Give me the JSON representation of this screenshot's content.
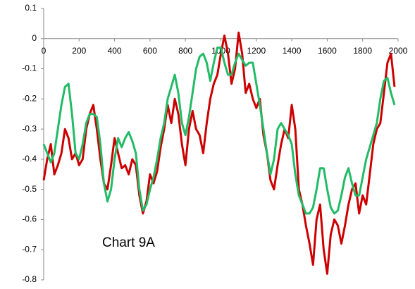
{
  "chart_data": {
    "type": "line",
    "annotation": "Chart 9A",
    "x": [
      0,
      20,
      40,
      60,
      80,
      100,
      120,
      140,
      160,
      180,
      200,
      220,
      240,
      260,
      280,
      300,
      320,
      340,
      360,
      380,
      400,
      420,
      440,
      460,
      480,
      500,
      520,
      540,
      560,
      580,
      600,
      620,
      640,
      660,
      680,
      700,
      720,
      740,
      760,
      780,
      800,
      820,
      840,
      860,
      880,
      900,
      920,
      940,
      960,
      980,
      1000,
      1020,
      1040,
      1060,
      1080,
      1100,
      1120,
      1140,
      1160,
      1180,
      1200,
      1220,
      1240,
      1260,
      1280,
      1300,
      1320,
      1340,
      1360,
      1380,
      1400,
      1420,
      1440,
      1460,
      1480,
      1500,
      1520,
      1540,
      1560,
      1580,
      1600,
      1620,
      1640,
      1660,
      1680,
      1700,
      1720,
      1740,
      1760,
      1780,
      1800,
      1820,
      1840,
      1860,
      1880,
      1900,
      1920,
      1940,
      1960,
      1980
    ],
    "series": [
      {
        "color": "#cc0000",
        "values": [
          -0.47,
          -0.4,
          -0.35,
          -0.45,
          -0.42,
          -0.38,
          -0.3,
          -0.33,
          -0.4,
          -0.38,
          -0.42,
          -0.4,
          -0.3,
          -0.25,
          -0.22,
          -0.3,
          -0.4,
          -0.48,
          -0.5,
          -0.42,
          -0.33,
          -0.38,
          -0.43,
          -0.42,
          -0.45,
          -0.4,
          -0.42,
          -0.52,
          -0.58,
          -0.54,
          -0.45,
          -0.48,
          -0.44,
          -0.36,
          -0.3,
          -0.22,
          -0.28,
          -0.2,
          -0.25,
          -0.35,
          -0.42,
          -0.3,
          -0.24,
          -0.3,
          -0.32,
          -0.38,
          -0.28,
          -0.2,
          -0.15,
          -0.12,
          -0.05,
          0.01,
          -0.05,
          -0.15,
          -0.1,
          0.02,
          -0.05,
          -0.18,
          -0.15,
          -0.2,
          -0.23,
          -0.2,
          -0.32,
          -0.38,
          -0.47,
          -0.5,
          -0.42,
          -0.35,
          -0.3,
          -0.33,
          -0.22,
          -0.3,
          -0.5,
          -0.55,
          -0.62,
          -0.68,
          -0.75,
          -0.6,
          -0.55,
          -0.7,
          -0.78,
          -0.65,
          -0.6,
          -0.62,
          -0.68,
          -0.62,
          -0.55,
          -0.5,
          -0.48,
          -0.58,
          -0.52,
          -0.55,
          -0.45,
          -0.35,
          -0.3,
          -0.28,
          -0.18,
          -0.08,
          -0.05,
          -0.16
        ]
      },
      {
        "color": "#22bb66",
        "values": [
          -0.35,
          -0.38,
          -0.41,
          -0.38,
          -0.3,
          -0.22,
          -0.16,
          -0.15,
          -0.25,
          -0.38,
          -0.4,
          -0.35,
          -0.28,
          -0.25,
          -0.25,
          -0.26,
          -0.35,
          -0.48,
          -0.54,
          -0.5,
          -0.4,
          -0.33,
          -0.36,
          -0.33,
          -0.31,
          -0.34,
          -0.38,
          -0.5,
          -0.57,
          -0.55,
          -0.5,
          -0.46,
          -0.4,
          -0.33,
          -0.28,
          -0.2,
          -0.16,
          -0.12,
          -0.18,
          -0.28,
          -0.32,
          -0.26,
          -0.18,
          -0.1,
          -0.06,
          -0.05,
          -0.08,
          -0.14,
          -0.08,
          -0.03,
          -0.03,
          -0.08,
          -0.12,
          -0.12,
          -0.08,
          -0.05,
          -0.07,
          -0.09,
          -0.08,
          -0.08,
          -0.15,
          -0.22,
          -0.3,
          -0.38,
          -0.45,
          -0.4,
          -0.3,
          -0.28,
          -0.3,
          -0.32,
          -0.35,
          -0.45,
          -0.52,
          -0.55,
          -0.58,
          -0.58,
          -0.56,
          -0.5,
          -0.43,
          -0.43,
          -0.5,
          -0.56,
          -0.58,
          -0.57,
          -0.52,
          -0.46,
          -0.43,
          -0.48,
          -0.52,
          -0.52,
          -0.46,
          -0.4,
          -0.36,
          -0.32,
          -0.28,
          -0.2,
          -0.14,
          -0.13,
          -0.18,
          -0.22
        ]
      }
    ],
    "xlim": [
      0,
      2000
    ],
    "xticks": [
      0,
      200,
      400,
      600,
      800,
      1000,
      1200,
      1400,
      1600,
      1800,
      2000
    ],
    "ylim": [
      -0.8,
      0.1
    ],
    "yticks": [
      0.1,
      0,
      -0.1,
      -0.2,
      -0.3,
      -0.4,
      -0.5,
      -0.6,
      -0.7,
      -0.8
    ],
    "grid": false
  }
}
